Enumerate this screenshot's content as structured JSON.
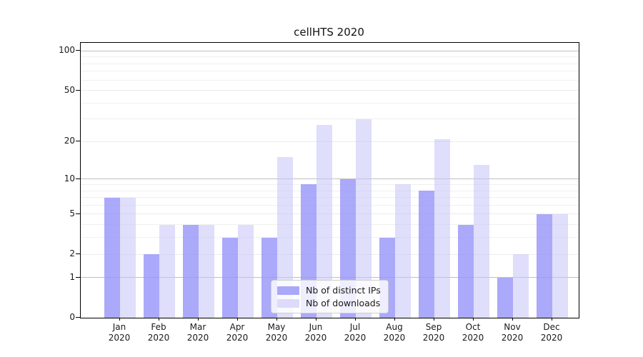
{
  "chart_data": {
    "type": "bar",
    "title": "cellHTS 2020",
    "categories": [
      "Jan",
      "Feb",
      "Mar",
      "Apr",
      "May",
      "Jun",
      "Jul",
      "Aug",
      "Sep",
      "Oct",
      "Nov",
      "Dec"
    ],
    "category_year": "2020",
    "series": [
      {
        "name": "Nb of distinct IPs",
        "color": "#aaa8f8",
        "fill": "rgba(150,147,247,0.8)",
        "values": [
          7,
          2,
          4,
          3,
          3,
          9,
          10,
          3,
          8,
          4,
          1,
          5
        ]
      },
      {
        "name": "Nb of downloads",
        "color": "#dcdbfa",
        "fill": "rgba(196,194,248,0.55)",
        "values": [
          7,
          4,
          4,
          4,
          15,
          27,
          30,
          9,
          21,
          13,
          2,
          5
        ]
      }
    ],
    "y_axis": {
      "scale": "log1p",
      "ticks": [
        0,
        1,
        2,
        5,
        10,
        20,
        50,
        100
      ],
      "minor_gridlines": [
        3,
        4,
        6,
        7,
        8,
        9,
        30,
        40,
        60,
        70,
        80,
        90
      ],
      "max": 114
    },
    "xlabel": "",
    "ylabel": "",
    "grid": true,
    "legend_position": "lower center",
    "colors": {
      "grid_major": "#c0c0c0",
      "grid_labeled": "#ebebeb",
      "grid_minor": "#f0f0f0",
      "axis": "#000000",
      "text": "#1a1a1a",
      "background": "#ffffff"
    }
  }
}
